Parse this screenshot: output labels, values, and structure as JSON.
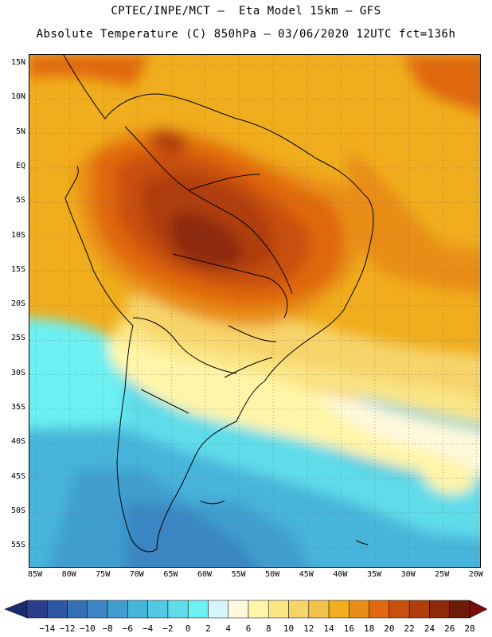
{
  "title_line1": "CPTEC/INPE/MCT –  Eta Model 15km – GFS",
  "title_line2": "Absolute Temperature (C) 850hPa – 03/06/2020 12UTC fct=136h",
  "latitude_labels": [
    "15N",
    "10N",
    "5N",
    "EQ",
    "5S",
    "10S",
    "15S",
    "20S",
    "25S",
    "30S",
    "35S",
    "40S",
    "45S",
    "50S",
    "55S"
  ],
  "longitude_labels": [
    "85W",
    "80W",
    "75W",
    "70W",
    "65W",
    "60W",
    "55W",
    "50W",
    "45W",
    "40W",
    "35W",
    "30W",
    "25W",
    "20W"
  ],
  "colorbar": {
    "labels": [
      "-14",
      "-12",
      "-10",
      "-8",
      "-6",
      "-4",
      "-2",
      "0",
      "2",
      "4",
      "6",
      "8",
      "10",
      "12",
      "14",
      "16",
      "18",
      "20",
      "22",
      "24",
      "26",
      "28"
    ],
    "colors": [
      "#2a3d8f",
      "#2e57a3",
      "#3570b5",
      "#3b86c2",
      "#3f9ecf",
      "#47b4da",
      "#52c8e2",
      "#5fdcea",
      "#6cf0f2",
      "#d4f5fb",
      "#fff8dc",
      "#fff5a8",
      "#fbe585",
      "#f7d46a",
      "#f2c24a",
      "#f0ad1d",
      "#e98d18",
      "#e06810",
      "#c8500e",
      "#b03d0c",
      "#8e2a0a",
      "#6e1a08"
    ],
    "under_color": "#1a2a70",
    "over_color": "#7a0b10"
  },
  "grid": "dotted"
}
